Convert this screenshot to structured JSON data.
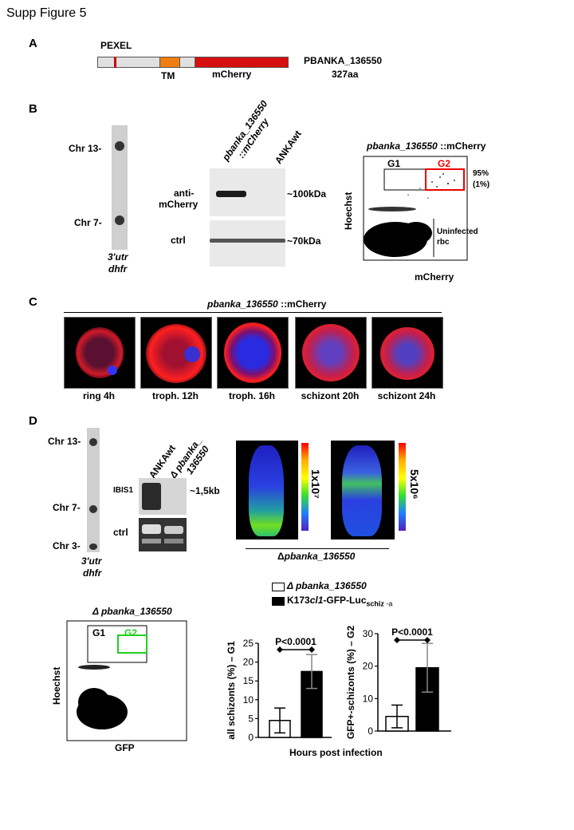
{
  "figure_title": "Supp Figure 5",
  "panel_a": {
    "letter": "A",
    "pexel": "PEXEL",
    "tm": "TM",
    "mcherry": "mCherry",
    "gene": "PBANKA_136550",
    "length": "327aa",
    "colors": {
      "tm": "#f07d12",
      "mcherry": "#d60f0f",
      "backbone": "#e0e0e0"
    }
  },
  "panel_b": {
    "letter": "B",
    "chr13": "Chr 13",
    "chr7": "Chr 7",
    "probe_line1": "3'utr",
    "probe_line2": "dhfr",
    "lane1_line1": "pbanka_136550",
    "lane1_line2": "::mCherry",
    "lane2": "ANKAwt",
    "anti_line1": "anti-",
    "anti_line2": "mCherry",
    "ctrl": "ctrl",
    "size1": "~100kDa",
    "size2": "~70kDa",
    "facs_title_italic": "pbanka_136550",
    "facs_title_rest": " ::mCherry",
    "g1": "G1",
    "g2": "G2",
    "pct1": "95%",
    "pct2": "(1%)",
    "uninf1": "Uninfected",
    "uninf2": "rbc",
    "ylabel": "Hoechst",
    "xlabel": "mCherry"
  },
  "panel_c": {
    "letter": "C",
    "title_italic": "pbanka_136550",
    "title_rest": " ::mCherry",
    "captions": [
      "ring 4h",
      "troph. 12h",
      "troph. 16h",
      "schizont 20h",
      "schizont 24h"
    ]
  },
  "panel_d": {
    "letter": "D",
    "chr13": "Chr 13",
    "chr7": "Chr 7",
    "chr3": "Chr 3",
    "probe_line1": "3'utr",
    "probe_line2": "dhfr",
    "lane1": "ANKAwt",
    "lane2_line1": "Δ pbanka_",
    "lane2_line2": "136550",
    "ibis": "IBIS1",
    "ctrl": "ctrl",
    "size": "~1,5kb",
    "scale1": "1x10⁷",
    "scale2": "5x10⁶",
    "mice_label_delta": "Δ",
    "mice_label_italic": "pbanka_136550",
    "facs_title": "Δ pbanka_136550",
    "g1": "G1",
    "g2": "G2",
    "facs_ylabel": "Hoechst",
    "facs_xlabel": "GFP",
    "legend1": "Δ pbanka_136550",
    "legend2_a": "K173",
    "legend2_b": "cl1",
    "legend2_c": "-GFP-Luc",
    "legend2_sub": "schiz",
    "legend2_d": " -a",
    "shared_xlabel": "Hours post infection"
  },
  "chart_data": [
    {
      "type": "bar",
      "ylabel": "all schizonts (%) – G1",
      "ylim": [
        0,
        25
      ],
      "yticks": [
        0,
        5,
        10,
        15,
        20,
        25
      ],
      "series": [
        {
          "name": "Δ pbanka_136550",
          "value": 4.5,
          "error": 3.3,
          "color": "#ffffff"
        },
        {
          "name": "K173cl1-GFP-Luc schiz -a",
          "value": 17.5,
          "error": 4.5,
          "color": "#000000"
        }
      ],
      "annotation": "P<0.0001"
    },
    {
      "type": "bar",
      "ylabel": "GFP+-schizonts (%) – G2",
      "ylim": [
        0,
        30
      ],
      "yticks": [
        0,
        10,
        20,
        30
      ],
      "series": [
        {
          "name": "Δ pbanka_136550",
          "value": 4.5,
          "error": 3.5,
          "color": "#ffffff"
        },
        {
          "name": "K173cl1-GFP-Luc schiz -a",
          "value": 19.5,
          "error": 7.5,
          "color": "#000000"
        }
      ],
      "annotation": "P<0.0001"
    }
  ]
}
